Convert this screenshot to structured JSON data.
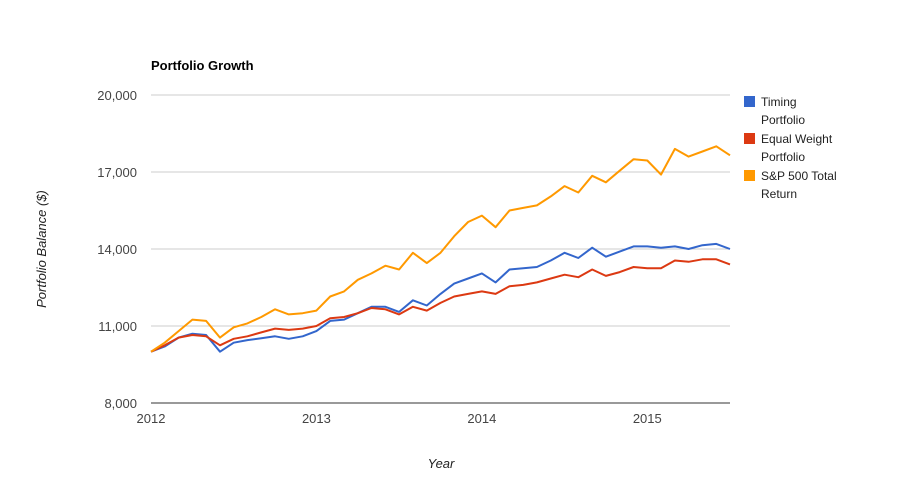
{
  "chart_data": {
    "type": "line",
    "title": "Portfolio Growth",
    "xlabel": "Year",
    "ylabel": "Portfolio Balance ($)",
    "ylim": [
      8000,
      20000
    ],
    "xlim": [
      2012.0,
      2015.5
    ],
    "y_ticks": [
      {
        "value": 8000,
        "label": "8,000"
      },
      {
        "value": 11000,
        "label": "11,000"
      },
      {
        "value": 14000,
        "label": "14,000"
      },
      {
        "value": 17000,
        "label": "17,000"
      },
      {
        "value": 20000,
        "label": "20,000"
      }
    ],
    "x_ticks": [
      {
        "value": 2012,
        "label": "2012"
      },
      {
        "value": 2013,
        "label": "2013"
      },
      {
        "value": 2014,
        "label": "2014"
      },
      {
        "value": 2015,
        "label": "2015"
      }
    ],
    "grid": true,
    "legend_position": "right",
    "x": [
      2012.0,
      2012.083,
      2012.167,
      2012.25,
      2012.333,
      2012.417,
      2012.5,
      2012.583,
      2012.667,
      2012.75,
      2012.833,
      2012.917,
      2013.0,
      2013.083,
      2013.167,
      2013.25,
      2013.333,
      2013.417,
      2013.5,
      2013.583,
      2013.667,
      2013.75,
      2013.833,
      2013.917,
      2014.0,
      2014.083,
      2014.167,
      2014.25,
      2014.333,
      2014.417,
      2014.5,
      2014.583,
      2014.667,
      2014.75,
      2014.833,
      2014.917,
      2015.0,
      2015.083,
      2015.167,
      2015.25,
      2015.333,
      2015.417,
      2015.5
    ],
    "series": [
      {
        "name": "Timing Portfolio",
        "color": "#3366cc",
        "values": [
          10000,
          10200,
          10550,
          10700,
          10650,
          10000,
          10350,
          10450,
          10520,
          10600,
          10500,
          10600,
          10800,
          11200,
          11250,
          11500,
          11750,
          11750,
          11550,
          12000,
          11800,
          12250,
          12650,
          12850,
          13050,
          12700,
          13200,
          13250,
          13300,
          13550,
          13850,
          13650,
          14050,
          13700,
          13900,
          14100,
          14100,
          14050,
          14100,
          14000,
          14150,
          14200,
          14000
        ]
      },
      {
        "name": "Equal Weight Portfolio",
        "color": "#dc3912",
        "values": [
          10000,
          10250,
          10550,
          10650,
          10600,
          10250,
          10500,
          10600,
          10750,
          10900,
          10850,
          10900,
          11000,
          11300,
          11350,
          11500,
          11700,
          11650,
          11450,
          11750,
          11600,
          11900,
          12150,
          12250,
          12350,
          12250,
          12550,
          12600,
          12700,
          12850,
          13000,
          12900,
          13200,
          12950,
          13100,
          13300,
          13250,
          13250,
          13550,
          13500,
          13600,
          13600,
          13400
        ]
      },
      {
        "name": "S&P 500 Total Return",
        "color": "#ff9900",
        "values": [
          10000,
          10350,
          10800,
          11250,
          11200,
          10550,
          10950,
          11100,
          11350,
          11650,
          11450,
          11500,
          11600,
          12150,
          12350,
          12800,
          13050,
          13350,
          13200,
          13850,
          13450,
          13850,
          14500,
          15050,
          15300,
          14850,
          15500,
          15600,
          15700,
          16050,
          16450,
          16200,
          16850,
          16600,
          17050,
          17500,
          17450,
          16900,
          17900,
          17600,
          17800,
          18000,
          17650
        ]
      }
    ]
  }
}
